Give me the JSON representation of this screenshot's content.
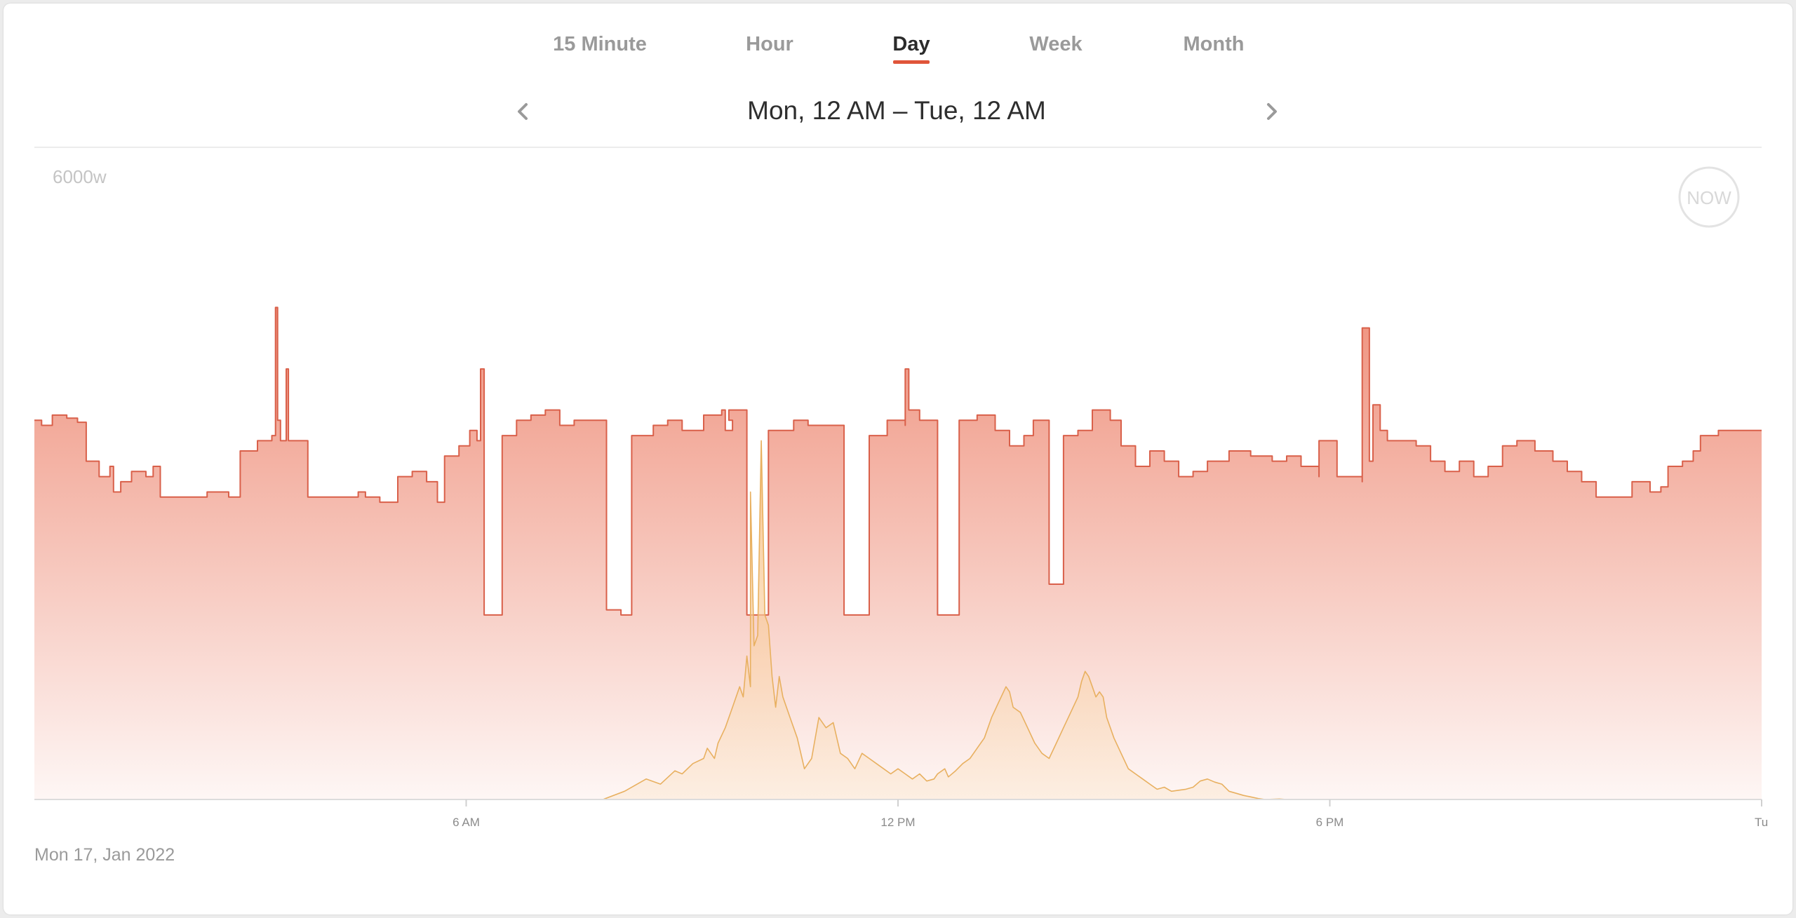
{
  "tabs": [
    {
      "label": "15 Minute",
      "active": false
    },
    {
      "label": "Hour",
      "active": false
    },
    {
      "label": "Day",
      "active": true
    },
    {
      "label": "Week",
      "active": false
    },
    {
      "label": "Month",
      "active": false
    }
  ],
  "range": {
    "label": "Mon, 12 AM – Tue, 12 AM",
    "prev_icon": "chevron-left-icon",
    "next_icon": "chevron-right-icon"
  },
  "now_button": {
    "label": "NOW"
  },
  "footer": {
    "date": "Mon 17, Jan 2022"
  },
  "colors": {
    "accent": "#e0553a",
    "usage_line": "#d9604a",
    "usage_fill_top": "#ef937f",
    "solar_line": "#e8b060",
    "solar_fill": "#f9c98a"
  },
  "chart_data": {
    "type": "area",
    "x_unit": "hours since Mon 12 AM",
    "xlim": [
      0,
      24
    ],
    "ylim": [
      0,
      6000
    ],
    "ylabel": "",
    "y_tick_labels": [
      "6000w"
    ],
    "x_ticks": [
      {
        "x": 6,
        "label": "6 AM"
      },
      {
        "x": 12,
        "label": "12 PM"
      },
      {
        "x": 18,
        "label": "6 PM"
      },
      {
        "x": 24,
        "label": "Tu"
      }
    ],
    "grid": false,
    "series": [
      {
        "name": "",
        "role": "usage",
        "style": "step",
        "points": [
          [
            0,
            3700
          ],
          [
            0.1,
            3650
          ],
          [
            0.25,
            3750
          ],
          [
            0.45,
            3720
          ],
          [
            0.6,
            3680
          ],
          [
            0.72,
            3300
          ],
          [
            0.9,
            3150
          ],
          [
            1.05,
            3250
          ],
          [
            1.1,
            3000
          ],
          [
            1.2,
            3100
          ],
          [
            1.35,
            3200
          ],
          [
            1.55,
            3150
          ],
          [
            1.65,
            3250
          ],
          [
            1.75,
            2950
          ],
          [
            1.85,
            2950
          ],
          [
            2.0,
            2950
          ],
          [
            2.4,
            3000
          ],
          [
            2.7,
            2950
          ],
          [
            2.86,
            3400
          ],
          [
            3.1,
            3500
          ],
          [
            3.3,
            3550
          ],
          [
            3.35,
            4800
          ],
          [
            3.38,
            3700
          ],
          [
            3.42,
            3500
          ],
          [
            3.5,
            4200
          ],
          [
            3.53,
            3500
          ],
          [
            3.8,
            3400
          ],
          [
            3.8,
            2950
          ],
          [
            4.2,
            2950
          ],
          [
            4.5,
            3000
          ],
          [
            4.6,
            2950
          ],
          [
            4.8,
            2900
          ],
          [
            5.05,
            3150
          ],
          [
            5.25,
            3200
          ],
          [
            5.45,
            3100
          ],
          [
            5.6,
            2900
          ],
          [
            5.7,
            3350
          ],
          [
            5.9,
            3450
          ],
          [
            6.05,
            3600
          ],
          [
            6.15,
            3500
          ],
          [
            6.2,
            4200
          ],
          [
            6.25,
            3500
          ],
          [
            6.25,
            1800
          ],
          [
            6.35,
            1800
          ],
          [
            6.5,
            3550
          ],
          [
            6.7,
            3700
          ],
          [
            6.9,
            3750
          ],
          [
            7.1,
            3800
          ],
          [
            7.3,
            3650
          ],
          [
            7.5,
            3700
          ],
          [
            7.75,
            3700
          ],
          [
            7.95,
            3700
          ],
          [
            7.95,
            1850
          ],
          [
            8.15,
            1800
          ],
          [
            8.3,
            3550
          ],
          [
            8.6,
            3650
          ],
          [
            8.8,
            3700
          ],
          [
            9.0,
            3600
          ],
          [
            9.3,
            3750
          ],
          [
            9.55,
            3800
          ],
          [
            9.6,
            3600
          ],
          [
            9.7,
            3700
          ],
          [
            9.65,
            3800
          ],
          [
            9.9,
            3750
          ],
          [
            9.9,
            1800
          ],
          [
            10.1,
            1800
          ],
          [
            10.2,
            3600
          ],
          [
            10.55,
            3700
          ],
          [
            10.75,
            3650
          ],
          [
            11.0,
            3650
          ],
          [
            11.25,
            3650
          ],
          [
            11.25,
            1800
          ],
          [
            11.45,
            1800
          ],
          [
            11.6,
            3550
          ],
          [
            11.85,
            3700
          ],
          [
            12.1,
            3650
          ],
          [
            12.1,
            4200
          ],
          [
            12.15,
            3800
          ],
          [
            12.3,
            3700
          ],
          [
            12.55,
            3700
          ],
          [
            12.55,
            1800
          ],
          [
            12.75,
            1800
          ],
          [
            12.85,
            3700
          ],
          [
            13.1,
            3750
          ],
          [
            13.35,
            3600
          ],
          [
            13.55,
            3450
          ],
          [
            13.75,
            3550
          ],
          [
            13.88,
            3700
          ],
          [
            14.1,
            3550
          ],
          [
            14.1,
            2100
          ],
          [
            14.3,
            2100
          ],
          [
            14.3,
            3550
          ],
          [
            14.5,
            3600
          ],
          [
            14.7,
            3800
          ],
          [
            14.95,
            3700
          ],
          [
            15.1,
            3450
          ],
          [
            15.3,
            3250
          ],
          [
            15.5,
            3400
          ],
          [
            15.7,
            3300
          ],
          [
            15.9,
            3150
          ],
          [
            16.1,
            3200
          ],
          [
            16.3,
            3300
          ],
          [
            16.6,
            3400
          ],
          [
            16.9,
            3350
          ],
          [
            17.2,
            3300
          ],
          [
            17.4,
            3350
          ],
          [
            17.6,
            3250
          ],
          [
            17.85,
            3150
          ],
          [
            17.85,
            3500
          ],
          [
            18.1,
            3150
          ],
          [
            18.45,
            3100
          ],
          [
            18.45,
            4600
          ],
          [
            18.55,
            3300
          ],
          [
            18.6,
            3850
          ],
          [
            18.7,
            3600
          ],
          [
            18.8,
            3500
          ],
          [
            18.9,
            3500
          ],
          [
            19.0,
            3500
          ],
          [
            19.2,
            3450
          ],
          [
            19.4,
            3300
          ],
          [
            19.6,
            3200
          ],
          [
            19.8,
            3300
          ],
          [
            20.0,
            3150
          ],
          [
            20.2,
            3250
          ],
          [
            20.4,
            3450
          ],
          [
            20.6,
            3500
          ],
          [
            20.85,
            3400
          ],
          [
            21.1,
            3300
          ],
          [
            21.3,
            3200
          ],
          [
            21.5,
            3100
          ],
          [
            21.7,
            2950
          ],
          [
            22.0,
            2950
          ],
          [
            22.2,
            3100
          ],
          [
            22.45,
            3000
          ],
          [
            22.6,
            3050
          ],
          [
            22.7,
            3250
          ],
          [
            22.9,
            3300
          ],
          [
            23.05,
            3400
          ],
          [
            23.15,
            3550
          ],
          [
            23.4,
            3600
          ],
          [
            23.65,
            3600
          ],
          [
            23.85,
            3600
          ],
          [
            23.9,
            3600
          ],
          [
            24.0,
            3600
          ]
        ]
      },
      {
        "name": "",
        "role": "solar",
        "style": "line",
        "points": [
          [
            7.9,
            0
          ],
          [
            8.2,
            80
          ],
          [
            8.5,
            200
          ],
          [
            8.7,
            150
          ],
          [
            8.9,
            280
          ],
          [
            9.0,
            250
          ],
          [
            9.15,
            350
          ],
          [
            9.3,
            400
          ],
          [
            9.35,
            500
          ],
          [
            9.45,
            400
          ],
          [
            9.5,
            550
          ],
          [
            9.6,
            700
          ],
          [
            9.7,
            900
          ],
          [
            9.8,
            1100
          ],
          [
            9.85,
            1000
          ],
          [
            9.9,
            1400
          ],
          [
            9.95,
            1100
          ],
          [
            9.95,
            3000
          ],
          [
            10.0,
            1500
          ],
          [
            10.05,
            1600
          ],
          [
            10.1,
            3500
          ],
          [
            10.15,
            1800
          ],
          [
            10.2,
            1700
          ],
          [
            10.25,
            1200
          ],
          [
            10.3,
            900
          ],
          [
            10.35,
            1200
          ],
          [
            10.4,
            1000
          ],
          [
            10.5,
            800
          ],
          [
            10.6,
            600
          ],
          [
            10.7,
            300
          ],
          [
            10.8,
            400
          ],
          [
            10.9,
            800
          ],
          [
            11.0,
            700
          ],
          [
            11.1,
            750
          ],
          [
            11.15,
            600
          ],
          [
            11.2,
            450
          ],
          [
            11.3,
            400
          ],
          [
            11.4,
            300
          ],
          [
            11.5,
            450
          ],
          [
            11.6,
            400
          ],
          [
            11.7,
            350
          ],
          [
            11.8,
            300
          ],
          [
            11.9,
            250
          ],
          [
            12.0,
            300
          ],
          [
            12.1,
            250
          ],
          [
            12.2,
            200
          ],
          [
            12.3,
            250
          ],
          [
            12.4,
            180
          ],
          [
            12.5,
            200
          ],
          [
            12.55,
            250
          ],
          [
            12.65,
            300
          ],
          [
            12.7,
            220
          ],
          [
            12.8,
            280
          ],
          [
            12.9,
            350
          ],
          [
            13.0,
            400
          ],
          [
            13.1,
            500
          ],
          [
            13.2,
            600
          ],
          [
            13.3,
            800
          ],
          [
            13.4,
            950
          ],
          [
            13.5,
            1100
          ],
          [
            13.55,
            1050
          ],
          [
            13.6,
            900
          ],
          [
            13.7,
            850
          ],
          [
            13.8,
            700
          ],
          [
            13.9,
            550
          ],
          [
            14.0,
            450
          ],
          [
            14.1,
            400
          ],
          [
            14.2,
            550
          ],
          [
            14.3,
            700
          ],
          [
            14.4,
            850
          ],
          [
            14.5,
            1000
          ],
          [
            14.55,
            1150
          ],
          [
            14.6,
            1250
          ],
          [
            14.65,
            1200
          ],
          [
            14.7,
            1100
          ],
          [
            14.75,
            1000
          ],
          [
            14.8,
            1050
          ],
          [
            14.85,
            1000
          ],
          [
            14.9,
            800
          ],
          [
            15.0,
            600
          ],
          [
            15.1,
            450
          ],
          [
            15.2,
            300
          ],
          [
            15.3,
            250
          ],
          [
            15.4,
            200
          ],
          [
            15.5,
            150
          ],
          [
            15.6,
            100
          ],
          [
            15.7,
            120
          ],
          [
            15.8,
            80
          ],
          [
            15.9,
            90
          ],
          [
            16.0,
            100
          ],
          [
            16.1,
            120
          ],
          [
            16.2,
            180
          ],
          [
            16.3,
            200
          ],
          [
            16.4,
            170
          ],
          [
            16.5,
            150
          ],
          [
            16.6,
            80
          ],
          [
            16.7,
            60
          ],
          [
            16.8,
            40
          ],
          [
            16.9,
            25
          ],
          [
            17.0,
            10
          ],
          [
            17.1,
            0
          ],
          [
            17.3,
            5
          ],
          [
            17.4,
            0
          ]
        ]
      }
    ]
  }
}
